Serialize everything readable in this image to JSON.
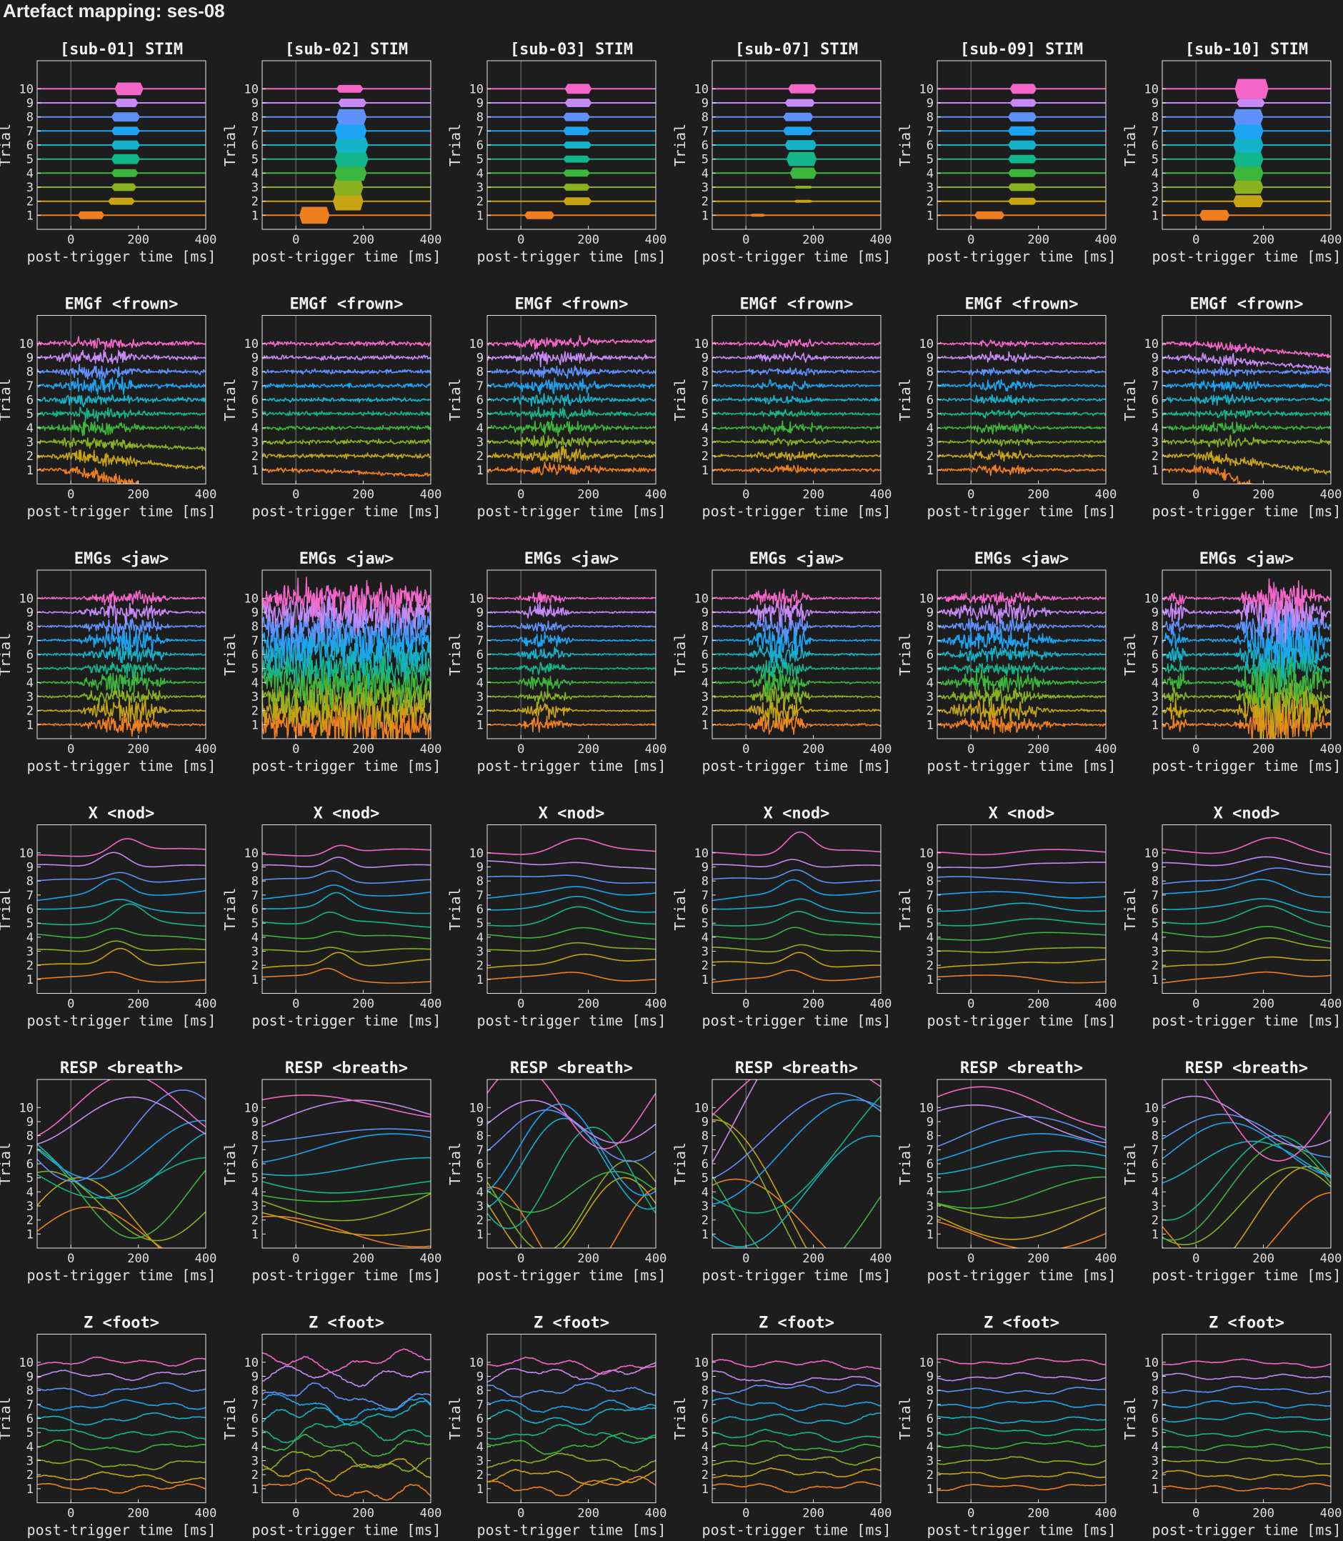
{
  "title": "Artefact mapping: ses-08",
  "colors": {
    "background": "#1d1d1d",
    "axes_frame": "#e8e8e8",
    "zero_line": "#7a7a7a",
    "trials": [
      "#ee5c61",
      "#ef7f1e",
      "#c7a411",
      "#89b11f",
      "#3cb53c",
      "#13b58a",
      "#13b2c9",
      "#1ca4f2",
      "#5f91fa",
      "#c68af6",
      "#f466c8"
    ]
  },
  "chart_data": {
    "type": "line",
    "layout": "grid",
    "xlabel": "post-trigger time [ms]",
    "ylabel": "Trial",
    "xlim": [
      -100,
      400
    ],
    "xticks": [
      "0",
      "200",
      "400"
    ],
    "ylim": [
      0,
      12
    ],
    "yticks": [
      "1",
      "2",
      "3",
      "4",
      "5",
      "6",
      "7",
      "8",
      "9",
      "10"
    ],
    "subjects": [
      "sub-01",
      "sub-02",
      "sub-03",
      "sub-07",
      "sub-09",
      "sub-10"
    ],
    "rows": [
      {
        "channel": "STIM",
        "kind": "stim",
        "panels": [
          {
            "title": "[sub-01] STIM",
            "bursts": [
              [
                1,
                20,
                100,
                0.45
              ],
              [
                2,
                110,
                190,
                0.4
              ],
              [
                3,
                120,
                195,
                0.45
              ],
              [
                4,
                120,
                200,
                0.45
              ],
              [
                5,
                120,
                205,
                0.6
              ],
              [
                6,
                120,
                205,
                0.55
              ],
              [
                7,
                120,
                205,
                0.5
              ],
              [
                8,
                120,
                205,
                0.55
              ],
              [
                9,
                130,
                200,
                0.5
              ],
              [
                10,
                130,
                215,
                0.8
              ]
            ]
          },
          {
            "title": "[sub-02] STIM",
            "bursts": [
              [
                1,
                10,
                100,
                1.1
              ],
              [
                2,
                110,
                200,
                1.2
              ],
              [
                3,
                110,
                200,
                1.1
              ],
              [
                4,
                115,
                210,
                1.0
              ],
              [
                5,
                115,
                215,
                1.0
              ],
              [
                6,
                115,
                215,
                1.0
              ],
              [
                7,
                115,
                210,
                1.0
              ],
              [
                8,
                120,
                210,
                1.0
              ],
              [
                9,
                125,
                210,
                0.5
              ],
              [
                10,
                120,
                200,
                0.45
              ]
            ]
          },
          {
            "title": "[sub-03] STIM",
            "bursts": [
              [
                1,
                10,
                100,
                0.45
              ],
              [
                2,
                125,
                210,
                0.45
              ],
              [
                3,
                125,
                205,
                0.4
              ],
              [
                4,
                125,
                205,
                0.4
              ],
              [
                5,
                125,
                205,
                0.4
              ],
              [
                6,
                125,
                210,
                0.4
              ],
              [
                7,
                125,
                205,
                0.5
              ],
              [
                8,
                125,
                205,
                0.5
              ],
              [
                9,
                130,
                210,
                0.5
              ],
              [
                10,
                130,
                210,
                0.6
              ]
            ]
          },
          {
            "title": "[sub-07] STIM",
            "bursts": [
              [
                1,
                10,
                60,
                0.1
              ],
              [
                2,
                140,
                200,
                0.1
              ],
              [
                3,
                140,
                200,
                0.1
              ],
              [
                4,
                130,
                210,
                0.7
              ],
              [
                5,
                120,
                210,
                0.9
              ],
              [
                6,
                115,
                210,
                0.6
              ],
              [
                7,
                110,
                200,
                0.5
              ],
              [
                8,
                110,
                200,
                0.5
              ],
              [
                9,
                115,
                205,
                0.45
              ],
              [
                10,
                125,
                210,
                0.55
              ]
            ]
          },
          {
            "title": "[sub-09] STIM",
            "bursts": [
              [
                1,
                10,
                100,
                0.45
              ],
              [
                2,
                110,
                195,
                0.4
              ],
              [
                3,
                110,
                195,
                0.45
              ],
              [
                4,
                110,
                195,
                0.45
              ],
              [
                5,
                110,
                195,
                0.5
              ],
              [
                6,
                110,
                195,
                0.55
              ],
              [
                7,
                110,
                195,
                0.55
              ],
              [
                8,
                110,
                195,
                0.55
              ],
              [
                9,
                115,
                195,
                0.45
              ],
              [
                10,
                115,
                195,
                0.6
              ]
            ]
          },
          {
            "title": "[sub-10] STIM",
            "bursts": [
              [
                1,
                10,
                100,
                0.65
              ],
              [
                2,
                110,
                200,
                0.75
              ],
              [
                3,
                110,
                200,
                0.85
              ],
              [
                4,
                110,
                200,
                0.95
              ],
              [
                5,
                110,
                200,
                1.0
              ],
              [
                6,
                110,
                200,
                1.0
              ],
              [
                7,
                110,
                200,
                1.0
              ],
              [
                8,
                110,
                200,
                1.0
              ],
              [
                9,
                120,
                205,
                0.5
              ],
              [
                10,
                115,
                215,
                1.3
              ]
            ]
          }
        ]
      },
      {
        "channel": "EMGf <frown>",
        "kind": "emg",
        "panels": [
          {
            "title": "EMGf <frown>",
            "noise": 0.3,
            "bursts": [
              [
                -60,
                220,
                0.9
              ]
            ],
            "drift": [
              [
                1,
                0,
                -2.2
              ],
              [
                2,
                0,
                -0.9
              ],
              [
                3,
                0,
                -0.5
              ]
            ]
          },
          {
            "title": "EMGf <frown>",
            "noise": 0.3,
            "bursts": [],
            "drift": [
              [
                1,
                0,
                -0.4
              ]
            ]
          },
          {
            "title": "EMGf <frown>",
            "noise": 0.3,
            "bursts": [
              [
                -40,
                250,
                0.8
              ]
            ],
            "drift": [
              [
                10,
                0,
                0.2
              ]
            ]
          },
          {
            "title": "EMGf <frown>",
            "noise": 0.2,
            "bursts": [
              [
                0,
                250,
                0.55
              ]
            ],
            "drift": []
          },
          {
            "title": "EMGf <frown>",
            "noise": 0.2,
            "bursts": [
              [
                -20,
                200,
                0.6
              ]
            ],
            "drift": []
          },
          {
            "title": "EMGf <frown>",
            "noise": 0.3,
            "bursts": [
              [
                -40,
                220,
                0.55
              ]
            ],
            "drift": [
              [
                1,
                50,
                -3.5
              ],
              [
                2,
                0,
                -1.2
              ],
              [
                9,
                0,
                -0.8
              ],
              [
                10,
                0,
                -0.9
              ]
            ]
          }
        ]
      },
      {
        "channel": "EMGs <jaw>",
        "kind": "emg",
        "panels": [
          {
            "title": "EMGs <jaw>",
            "noise": 0.15,
            "bursts": [
              [
                20,
                300,
                1.6
              ]
            ],
            "drift": []
          },
          {
            "title": "EMGs <jaw>",
            "noise": 1.8,
            "bursts": [
              [
                -100,
                400,
                1.6
              ]
            ],
            "drift": []
          },
          {
            "title": "EMGs <jaw>",
            "noise": 0.12,
            "bursts": [
              [
                -20,
                160,
                1.1
              ]
            ],
            "drift": []
          },
          {
            "title": "EMGs <jaw>",
            "noise": 0.15,
            "bursts": [
              [
                0,
                200,
                2.2
              ]
            ],
            "drift": []
          },
          {
            "title": "EMGs <jaw>",
            "noise": 0.2,
            "bursts": [
              [
                -100,
                260,
                1.3
              ]
            ],
            "drift": []
          },
          {
            "title": "EMGs <jaw>",
            "noise": 0.2,
            "bursts": [
              [
                110,
                400,
                4.0
              ],
              [
                -100,
                -20,
                1.5
              ]
            ],
            "drift": []
          }
        ]
      },
      {
        "channel": "X <nod>",
        "kind": "smooth",
        "panels": [
          {
            "title": "X <nod>",
            "peak": 150,
            "amp": 1.1,
            "width": 60,
            "var": 0.6
          },
          {
            "title": "X <nod>",
            "peak": 120,
            "amp": 0.9,
            "width": 50,
            "var": 0.7
          },
          {
            "title": "X <nod>",
            "peak": 170,
            "amp": 0.9,
            "width": 90,
            "var": 0.4
          },
          {
            "title": "X <nod>",
            "peak": 150,
            "amp": 1.3,
            "width": 55,
            "var": 0.4
          },
          {
            "title": "X <nod>",
            "peak": 170,
            "amp": 0.3,
            "width": 100,
            "var": 0.3
          },
          {
            "title": "X <nod>",
            "peak": 220,
            "amp": 1.1,
            "width": 100,
            "var": 0.5
          }
        ]
      },
      {
        "channel": "RESP <breath>",
        "kind": "resp",
        "panels": [
          {
            "title": "RESP <breath>",
            "amp": 3.0,
            "period": 650,
            "phase": 0.2,
            "trend": 0.0
          },
          {
            "title": "RESP <breath>",
            "amp": 1.2,
            "period": 900,
            "phase": 1.3,
            "trend": 0.8
          },
          {
            "title": "RESP <breath>",
            "amp": 3.0,
            "period": 500,
            "phase": 2.1,
            "trend": 0.0
          },
          {
            "title": "RESP <breath>",
            "amp": 6.0,
            "period": 900,
            "phase": 0.8,
            "trend": 4.0
          },
          {
            "title": "RESP <breath>",
            "amp": 1.3,
            "period": 800,
            "phase": 1.8,
            "trend": 0.3
          },
          {
            "title": "RESP <breath>",
            "amp": 3.2,
            "period": 650,
            "phase": 2.6,
            "trend": 0.0
          }
        ]
      },
      {
        "channel": "Z <foot>",
        "kind": "wobble",
        "panels": [
          {
            "title": "Z <foot>",
            "amp": 0.45
          },
          {
            "title": "Z <foot>",
            "amp": 0.9
          },
          {
            "title": "Z <foot>",
            "amp": 0.65
          },
          {
            "title": "Z <foot>",
            "amp": 0.45
          },
          {
            "title": "Z <foot>",
            "amp": 0.3
          },
          {
            "title": "Z <foot>",
            "amp": 0.3
          }
        ]
      }
    ]
  }
}
